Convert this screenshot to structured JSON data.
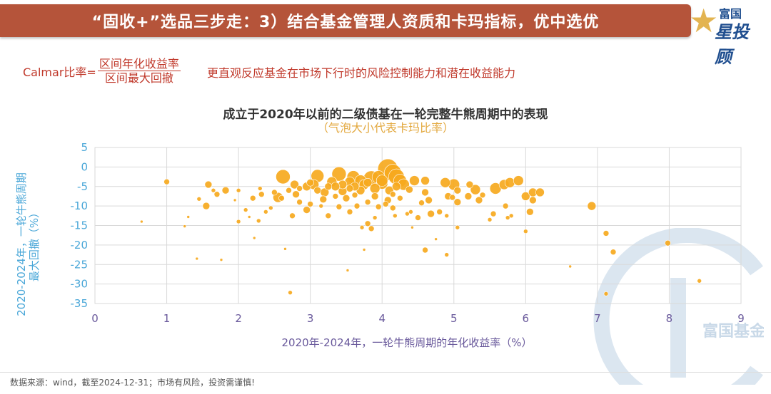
{
  "header": {
    "title": "“固收+”选品三步走：3）结合基金管理人资质和卡玛指标，优中选优",
    "logo_line1": "富国",
    "logo_line2": "星投顾"
  },
  "formula": {
    "prefix": "Calmar比率=",
    "numerator": "区间年化收益率",
    "denominator": "区间最大回撤",
    "description": "更直观反应基金在市场下行时的风险控制能力和潜在收益能力"
  },
  "footer": "数据来源：wind，截至2024-12-31；市场有风险，投资需谨慎!",
  "watermark": "富国基金",
  "colors": {
    "banner": "#b5543a",
    "bubble": "#f6a91e",
    "accent_red": "#c0392b",
    "axis_label_y": "#4aa7d8",
    "axis_label_x": "#6a5a9c"
  },
  "chart_data": {
    "type": "scatter",
    "title": "成立于2020年以前的二级债基在一轮完整牛熊周期中的表现",
    "subtitle": "（气泡大小代表卡玛比率）",
    "xlabel": "2020年-2024年，一轮牛熊周期的年化收益率（%）",
    "ylabel": "2020-2024年，一轮牛熊周期最大回撤（%）",
    "xlim": [
      0,
      9
    ],
    "ylim": [
      -35,
      5
    ],
    "xticks": [
      "0",
      "1",
      "2",
      "3",
      "4",
      "5",
      "6",
      "7",
      "8",
      "9"
    ],
    "yticks": [
      "5",
      "0",
      "-5",
      "-10",
      "-15",
      "-20",
      "-25",
      "-30",
      "-35"
    ],
    "grid": true,
    "points": [
      {
        "x": 4.08,
        "y": -0.5,
        "r": 14
      },
      {
        "x": 4.15,
        "y": -1.5,
        "r": 12
      },
      {
        "x": 4.2,
        "y": -2.5,
        "r": 11
      },
      {
        "x": 3.85,
        "y": -3.0,
        "r": 11
      },
      {
        "x": 3.4,
        "y": -1.8,
        "r": 10
      },
      {
        "x": 2.62,
        "y": -2.5,
        "r": 10
      },
      {
        "x": 3.1,
        "y": -2.3,
        "r": 9
      },
      {
        "x": 3.6,
        "y": -2.6,
        "r": 9
      },
      {
        "x": 3.95,
        "y": -2.6,
        "r": 9
      },
      {
        "x": 4.25,
        "y": -3.5,
        "r": 9
      },
      {
        "x": 4.3,
        "y": -4.5,
        "r": 8
      },
      {
        "x": 4.0,
        "y": -4.2,
        "r": 8
      },
      {
        "x": 3.75,
        "y": -4.5,
        "r": 7
      },
      {
        "x": 3.55,
        "y": -3.8,
        "r": 7
      },
      {
        "x": 3.3,
        "y": -3.8,
        "r": 7
      },
      {
        "x": 3.05,
        "y": -4.5,
        "r": 7
      },
      {
        "x": 4.45,
        "y": -3.5,
        "r": 7
      },
      {
        "x": 3.9,
        "y": -5.5,
        "r": 7
      },
      {
        "x": 4.1,
        "y": -6.0,
        "r": 6
      },
      {
        "x": 3.7,
        "y": -6.0,
        "r": 6
      },
      {
        "x": 3.45,
        "y": -6.2,
        "r": 6
      },
      {
        "x": 3.2,
        "y": -6.5,
        "r": 6
      },
      {
        "x": 2.95,
        "y": -5.0,
        "r": 6
      },
      {
        "x": 2.78,
        "y": -4.5,
        "r": 6
      },
      {
        "x": 2.55,
        "y": -7.8,
        "r": 7
      },
      {
        "x": 4.6,
        "y": -3.5,
        "r": 6
      },
      {
        "x": 3.62,
        "y": -5.0,
        "r": 6
      },
      {
        "x": 3.8,
        "y": -4.0,
        "r": 6
      },
      {
        "x": 4.2,
        "y": -5.0,
        "r": 6
      },
      {
        "x": 3.25,
        "y": -5.0,
        "r": 5
      },
      {
        "x": 3.0,
        "y": -4.0,
        "r": 5
      },
      {
        "x": 4.38,
        "y": -5.8,
        "r": 5
      },
      {
        "x": 3.9,
        "y": -7.5,
        "r": 5
      },
      {
        "x": 4.08,
        "y": -8.5,
        "r": 5
      },
      {
        "x": 3.5,
        "y": -8.0,
        "r": 5
      },
      {
        "x": 3.18,
        "y": -8.3,
        "r": 5
      },
      {
        "x": 2.8,
        "y": -7.0,
        "r": 5
      },
      {
        "x": 3.62,
        "y": -7.2,
        "r": 4
      },
      {
        "x": 3.35,
        "y": -7.5,
        "r": 4
      },
      {
        "x": 4.15,
        "y": -7.0,
        "r": 4
      },
      {
        "x": 3.8,
        "y": -9.0,
        "r": 4
      },
      {
        "x": 4.25,
        "y": -8.0,
        "r": 4
      },
      {
        "x": 4.55,
        "y": -9.2,
        "r": 4
      },
      {
        "x": 3.4,
        "y": -10.2,
        "r": 4
      },
      {
        "x": 3.0,
        "y": -9.5,
        "r": 4
      },
      {
        "x": 2.85,
        "y": -9.0,
        "r": 4
      },
      {
        "x": 4.15,
        "y": -10.5,
        "r": 4
      },
      {
        "x": 3.65,
        "y": -10.0,
        "r": 4
      },
      {
        "x": 3.95,
        "y": -10.2,
        "r": 4
      },
      {
        "x": 3.55,
        "y": -11.5,
        "r": 4
      },
      {
        "x": 2.75,
        "y": -12.5,
        "r": 4
      },
      {
        "x": 2.32,
        "y": -7.0,
        "r": 4
      },
      {
        "x": 2.2,
        "y": -8.0,
        "r": 4
      },
      {
        "x": 2.45,
        "y": -10.5,
        "r": 3
      },
      {
        "x": 2.1,
        "y": -11.0,
        "r": 3
      },
      {
        "x": 2.0,
        "y": -6.0,
        "r": 3
      },
      {
        "x": 2.3,
        "y": -5.5,
        "r": 3
      },
      {
        "x": 2.7,
        "y": -6.0,
        "r": 4
      },
      {
        "x": 2.95,
        "y": -11.0,
        "r": 5
      },
      {
        "x": 3.25,
        "y": -12.5,
        "r": 4
      },
      {
        "x": 3.8,
        "y": -14.5,
        "r": 4
      },
      {
        "x": 3.85,
        "y": -15.8,
        "r": 4
      },
      {
        "x": 3.72,
        "y": -15.5,
        "r": 3
      },
      {
        "x": 4.18,
        "y": -12.5,
        "r": 3
      },
      {
        "x": 4.35,
        "y": -12.0,
        "r": 3
      },
      {
        "x": 4.8,
        "y": -11.5,
        "r": 4
      },
      {
        "x": 4.9,
        "y": -12.5,
        "r": 3
      },
      {
        "x": 5.05,
        "y": -15.5,
        "r": 3
      },
      {
        "x": 4.88,
        "y": -4.0,
        "r": 7
      },
      {
        "x": 5.0,
        "y": -4.5,
        "r": 8
      },
      {
        "x": 4.92,
        "y": -7.5,
        "r": 5
      },
      {
        "x": 5.05,
        "y": -6.0,
        "r": 5
      },
      {
        "x": 5.2,
        "y": -7.5,
        "r": 5
      },
      {
        "x": 5.22,
        "y": -4.5,
        "r": 5
      },
      {
        "x": 5.3,
        "y": -5.8,
        "r": 7
      },
      {
        "x": 5.35,
        "y": -8.5,
        "r": 5
      },
      {
        "x": 5.05,
        "y": -9.0,
        "r": 5
      },
      {
        "x": 4.98,
        "y": -7.8,
        "r": 4
      },
      {
        "x": 5.58,
        "y": -5.5,
        "r": 8
      },
      {
        "x": 5.7,
        "y": -4.5,
        "r": 7
      },
      {
        "x": 5.78,
        "y": -4.0,
        "r": 7
      },
      {
        "x": 5.9,
        "y": -3.5,
        "r": 7
      },
      {
        "x": 5.4,
        "y": -7.2,
        "r": 4
      },
      {
        "x": 5.72,
        "y": -10.0,
        "r": 4
      },
      {
        "x": 5.55,
        "y": -12.0,
        "r": 4
      },
      {
        "x": 5.8,
        "y": -12.5,
        "r": 3
      },
      {
        "x": 5.75,
        "y": -13.0,
        "r": 3
      },
      {
        "x": 5.5,
        "y": -13.5,
        "r": 3
      },
      {
        "x": 6.0,
        "y": -7.5,
        "r": 6
      },
      {
        "x": 6.1,
        "y": -6.5,
        "r": 6
      },
      {
        "x": 6.2,
        "y": -6.5,
        "r": 6
      },
      {
        "x": 6.1,
        "y": -8.5,
        "r": 5
      },
      {
        "x": 6.06,
        "y": -11.5,
        "r": 5
      },
      {
        "x": 6.0,
        "y": -16.5,
        "r": 3
      },
      {
        "x": 6.92,
        "y": -10.0,
        "r": 6
      },
      {
        "x": 6.62,
        "y": -25.5,
        "r": 2
      },
      {
        "x": 7.12,
        "y": -17.0,
        "r": 4
      },
      {
        "x": 7.22,
        "y": -21.8,
        "r": 4
      },
      {
        "x": 7.12,
        "y": -32.5,
        "r": 3
      },
      {
        "x": 7.98,
        "y": -19.5,
        "r": 4
      },
      {
        "x": 8.42,
        "y": -29.2,
        "r": 3
      },
      {
        "x": 4.6,
        "y": -21.3,
        "r": 4
      },
      {
        "x": 4.75,
        "y": -18.5,
        "r": 2
      },
      {
        "x": 4.9,
        "y": -22.5,
        "r": 3
      },
      {
        "x": 4.6,
        "y": -6.5,
        "r": 5
      },
      {
        "x": 4.65,
        "y": -8.5,
        "r": 5
      },
      {
        "x": 4.68,
        "y": -12.0,
        "r": 5
      },
      {
        "x": 4.5,
        "y": -13.0,
        "r": 4
      },
      {
        "x": 4.4,
        "y": -11.5,
        "r": 3
      },
      {
        "x": 3.75,
        "y": -21.2,
        "r": 2
      },
      {
        "x": 3.52,
        "y": -26.5,
        "r": 2
      },
      {
        "x": 2.72,
        "y": -32.2,
        "r": 3
      },
      {
        "x": 2.65,
        "y": -21.0,
        "r": 2
      },
      {
        "x": 2.22,
        "y": -18.2,
        "r": 2
      },
      {
        "x": 2.0,
        "y": -14.0,
        "r": 3
      },
      {
        "x": 1.76,
        "y": -23.8,
        "r": 2
      },
      {
        "x": 1.42,
        "y": -23.5,
        "r": 2
      },
      {
        "x": 1.55,
        "y": -10.0,
        "r": 5
      },
      {
        "x": 1.58,
        "y": -4.5,
        "r": 5
      },
      {
        "x": 1.7,
        "y": -7.0,
        "r": 4
      },
      {
        "x": 1.65,
        "y": -6.0,
        "r": 3
      },
      {
        "x": 1.82,
        "y": -6.0,
        "r": 5
      },
      {
        "x": 1.0,
        "y": -3.8,
        "r": 4
      },
      {
        "x": 0.65,
        "y": -14.0,
        "r": 2
      },
      {
        "x": 1.3,
        "y": -12.8,
        "r": 2
      },
      {
        "x": 1.25,
        "y": -15.2,
        "r": 2
      },
      {
        "x": 1.45,
        "y": -8.2,
        "r": 3
      },
      {
        "x": 1.95,
        "y": -8.5,
        "r": 2
      },
      {
        "x": 2.38,
        "y": -11.5,
        "r": 3
      },
      {
        "x": 2.28,
        "y": -13.8,
        "r": 3
      },
      {
        "x": 2.15,
        "y": -12.8,
        "r": 2
      },
      {
        "x": 2.5,
        "y": -6.5,
        "r": 4
      },
      {
        "x": 2.6,
        "y": -8.0,
        "r": 4
      },
      {
        "x": 2.85,
        "y": -5.5,
        "r": 4
      },
      {
        "x": 3.45,
        "y": -4.5,
        "r": 6
      },
      {
        "x": 3.55,
        "y": -5.5,
        "r": 5
      },
      {
        "x": 4.0,
        "y": -3.5,
        "r": 8
      },
      {
        "x": 3.7,
        "y": -3.5,
        "r": 8
      },
      {
        "x": 3.35,
        "y": -5.0,
        "r": 6
      },
      {
        "x": 4.05,
        "y": -9.5,
        "r": 4
      },
      {
        "x": 3.15,
        "y": -10.0,
        "r": 3
      },
      {
        "x": 3.9,
        "y": -13.0,
        "r": 3
      },
      {
        "x": 4.42,
        "y": -15.5,
        "r": 2
      },
      {
        "x": 3.1,
        "y": -6.0,
        "r": 5
      }
    ]
  }
}
